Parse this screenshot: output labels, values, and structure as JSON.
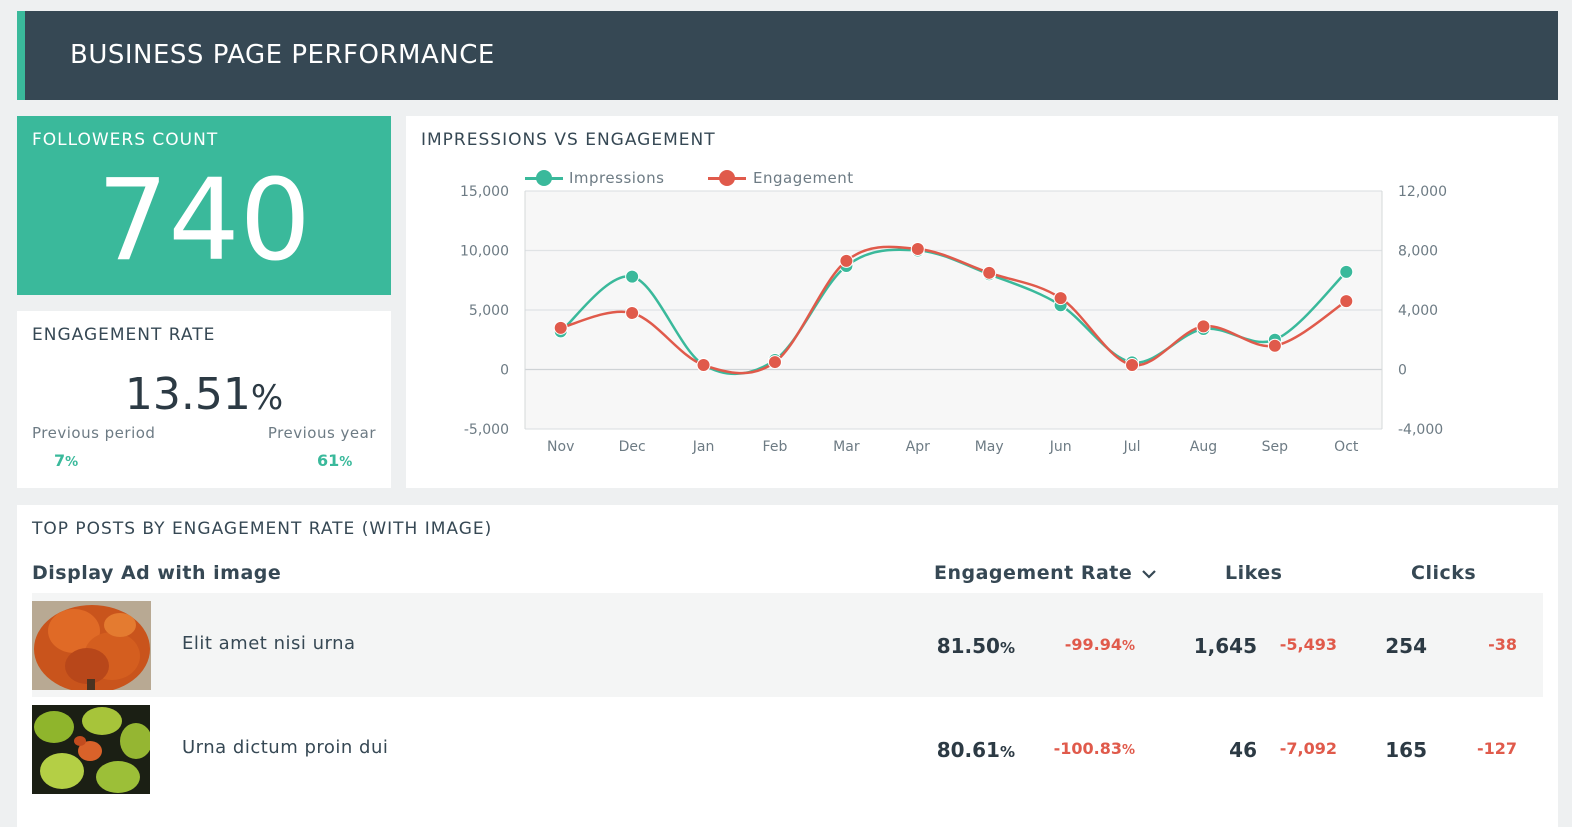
{
  "header": {
    "title": "BUSINESS PAGE PERFORMANCE"
  },
  "followers": {
    "label": "FOLLOWERS COUNT",
    "value": "740"
  },
  "engagement_rate": {
    "label": "ENGAGEMENT RATE",
    "value": "13.51",
    "unit": "%",
    "previous_period_label": "Previous period",
    "previous_period_value": "7",
    "previous_year_label": "Previous year",
    "previous_year_value": "61"
  },
  "chart_title": "IMPRESSIONS VS ENGAGEMENT",
  "chart_data": {
    "type": "line",
    "title": "IMPRESSIONS VS ENGAGEMENT",
    "categories": [
      "Nov",
      "Dec",
      "Jan",
      "Feb",
      "Mar",
      "Apr",
      "May",
      "Jun",
      "Jul",
      "Aug",
      "Sep",
      "Oct"
    ],
    "series": [
      {
        "name": "Impressions",
        "axis": "left",
        "color": "#3ab99b",
        "values": [
          3200,
          7800,
          400,
          800,
          8700,
          10000,
          8000,
          5400,
          600,
          3400,
          2500,
          8200
        ]
      },
      {
        "name": "Engagement",
        "axis": "right",
        "color": "#e05a4b",
        "values": [
          2800,
          3800,
          300,
          500,
          7300,
          8100,
          6500,
          4800,
          300,
          2900,
          1600,
          4600
        ]
      }
    ],
    "y_left": {
      "ticks": [
        "15,000",
        "10,000",
        "5,000",
        "0",
        "-5,000"
      ],
      "range": [
        -5000,
        15000
      ]
    },
    "y_right": {
      "ticks": [
        "12,000",
        "8,000",
        "4,000",
        "0",
        "-4,000"
      ],
      "range": [
        -4000,
        12000
      ]
    },
    "grid": true,
    "legend": "top-left"
  },
  "posts": {
    "title": "TOP POSTS BY ENGAGEMENT RATE (WITH IMAGE)",
    "columns": {
      "name": "Display Ad with image",
      "rate": "Engagement Rate",
      "likes": "Likes",
      "clicks": "Clicks"
    },
    "rows": [
      {
        "name": "Elit amet nisi urna",
        "rate": "81.50",
        "rate_delta": "-99.94",
        "likes": "1,645",
        "likes_delta": "-5,493",
        "clicks": "254",
        "clicks_delta": "-38"
      },
      {
        "name": "Urna dictum proin dui",
        "rate": "80.61",
        "rate_delta": "-100.83",
        "likes": "46",
        "likes_delta": "-7,092",
        "clicks": "165",
        "clicks_delta": "-127"
      }
    ],
    "percent_sign": "%"
  },
  "icons": {
    "sort": "chevron-down-icon"
  },
  "colors": {
    "accent": "#3ab99b",
    "negative": "#e05a4b",
    "header_bg": "#364854"
  }
}
